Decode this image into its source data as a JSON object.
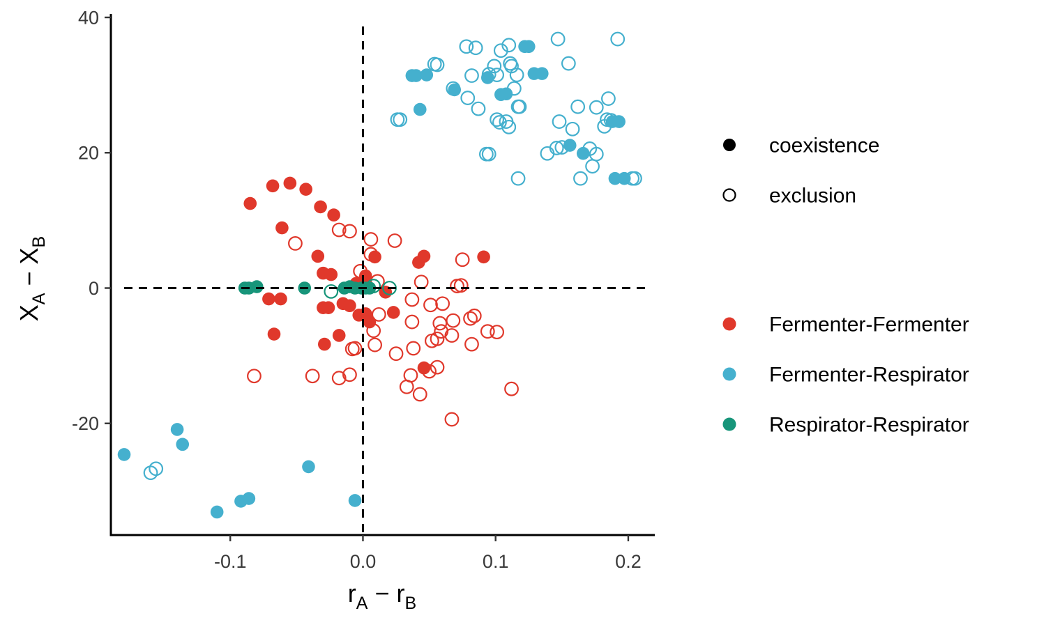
{
  "chart_data": {
    "type": "scatter",
    "xlabel": {
      "main": "r",
      "sub1": "A",
      "op": " − ",
      "main2": "r",
      "sub2": "B"
    },
    "ylabel": {
      "main": "X",
      "sub1": "A",
      "op": " − ",
      "main2": "X",
      "sub2": "B"
    },
    "xlim": [
      -0.19,
      0.22
    ],
    "ylim": [
      -36.5,
      40
    ],
    "x_ticks": [
      -0.1,
      0.0,
      0.1,
      0.2
    ],
    "x_tick_labels": [
      "-0.1",
      "0.0",
      "0.1",
      "0.2"
    ],
    "y_ticks": [
      -20,
      0,
      20,
      40
    ],
    "y_tick_labels": [
      "-20",
      "0",
      "20",
      "40"
    ],
    "reference_lines": {
      "x": 0,
      "y": 0,
      "style": "dashed"
    },
    "grid": false,
    "legend_placement": "right",
    "shape_legend": [
      {
        "label": "coexistence",
        "filled": true
      },
      {
        "label": "exclusion",
        "filled": false
      }
    ],
    "color_legend": [
      {
        "label": "Fermenter-Fermenter",
        "color": "#E0382B"
      },
      {
        "label": "Fermenter-Respirator",
        "color": "#45B0CE"
      },
      {
        "label": "Respirator-Respirator",
        "color": "#17957A"
      }
    ],
    "series": [
      {
        "name": "Fermenter-Fermenter",
        "color": "#E0382B",
        "coexistence": [
          [
            -0.085,
            12.5
          ],
          [
            -0.068,
            15.1
          ],
          [
            -0.055,
            15.5
          ],
          [
            -0.043,
            14.6
          ],
          [
            -0.032,
            12.0
          ],
          [
            -0.022,
            10.8
          ],
          [
            -0.061,
            8.9
          ],
          [
            -0.034,
            4.7
          ],
          [
            -0.03,
            2.2
          ],
          [
            -0.024,
            2.0
          ],
          [
            -0.071,
            -1.6
          ],
          [
            -0.062,
            -1.6
          ],
          [
            -0.03,
            -2.9
          ],
          [
            -0.026,
            -2.9
          ],
          [
            -0.015,
            -2.3
          ],
          [
            -0.01,
            -2.6
          ],
          [
            -0.003,
            -4.0
          ],
          [
            0.002,
            -3.8
          ],
          [
            0.005,
            -5.0
          ],
          [
            -0.005,
            0.7
          ],
          [
            0.002,
            1.8
          ],
          [
            0.009,
            4.6
          ],
          [
            0.017,
            -0.6
          ],
          [
            0.023,
            -3.6
          ],
          [
            0.042,
            3.8
          ],
          [
            0.046,
            4.7
          ],
          [
            0.091,
            4.6
          ],
          [
            -0.067,
            -6.8
          ],
          [
            -0.029,
            -8.3
          ],
          [
            -0.018,
            -7.0
          ],
          [
            0.046,
            -11.8
          ]
        ],
        "exclusion": [
          [
            -0.051,
            6.6
          ],
          [
            -0.018,
            8.6
          ],
          [
            -0.01,
            8.4
          ],
          [
            0.006,
            7.2
          ],
          [
            0.024,
            7.0
          ],
          [
            0.006,
            5.0
          ],
          [
            -0.002,
            2.5
          ],
          [
            -0.004,
            0.6
          ],
          [
            0.011,
            1.0
          ],
          [
            0.044,
            0.9
          ],
          [
            0.071,
            0.3
          ],
          [
            0.075,
            4.2
          ],
          [
            0.074,
            0.4
          ],
          [
            0.037,
            -1.7
          ],
          [
            0.051,
            -2.5
          ],
          [
            0.06,
            -2.3
          ],
          [
            0.012,
            -3.9
          ],
          [
            0.008,
            -6.3
          ],
          [
            0.037,
            -5.0
          ],
          [
            0.058,
            -5.2
          ],
          [
            0.068,
            -4.8
          ],
          [
            0.081,
            -4.5
          ],
          [
            0.084,
            -4.1
          ],
          [
            0.094,
            -6.4
          ],
          [
            0.101,
            -6.5
          ],
          [
            0.059,
            -6.4
          ],
          [
            0.056,
            -7.5
          ],
          [
            0.052,
            -7.8
          ],
          [
            0.067,
            -7.0
          ],
          [
            0.082,
            -8.3
          ],
          [
            0.038,
            -8.9
          ],
          [
            0.025,
            -9.7
          ],
          [
            -0.006,
            -8.9
          ],
          [
            -0.008,
            -9.0
          ],
          [
            0.009,
            -8.4
          ],
          [
            0.056,
            -11.7
          ],
          [
            0.05,
            -12.3
          ],
          [
            0.036,
            -12.9
          ],
          [
            -0.018,
            -13.3
          ],
          [
            -0.01,
            -12.8
          ],
          [
            -0.038,
            -13.0
          ],
          [
            -0.082,
            -13.0
          ],
          [
            0.033,
            -14.6
          ],
          [
            0.043,
            -15.7
          ],
          [
            0.112,
            -14.9
          ],
          [
            0.067,
            -19.4
          ]
        ]
      },
      {
        "name": "Fermenter-Respirator",
        "color": "#45B0CE",
        "coexistence": [
          [
            0.037,
            31.4
          ],
          [
            0.04,
            31.4
          ],
          [
            0.048,
            31.5
          ],
          [
            0.122,
            35.7
          ],
          [
            0.125,
            35.7
          ],
          [
            0.129,
            31.7
          ],
          [
            0.135,
            31.7
          ],
          [
            0.069,
            29.3
          ],
          [
            0.094,
            31.1
          ],
          [
            0.104,
            28.6
          ],
          [
            0.108,
            28.7
          ],
          [
            0.043,
            26.4
          ],
          [
            0.156,
            21.1
          ],
          [
            0.166,
            19.9
          ],
          [
            0.188,
            24.6
          ],
          [
            0.193,
            24.6
          ],
          [
            0.19,
            16.2
          ],
          [
            0.197,
            16.2
          ],
          [
            -0.18,
            -24.6
          ],
          [
            -0.14,
            -20.9
          ],
          [
            -0.136,
            -23.1
          ],
          [
            -0.11,
            -33.1
          ],
          [
            -0.092,
            -31.5
          ],
          [
            -0.086,
            -31.1
          ],
          [
            -0.041,
            -26.4
          ],
          [
            -0.006,
            -31.4
          ]
        ],
        "exclusion": [
          [
            0.078,
            35.7
          ],
          [
            0.085,
            35.5
          ],
          [
            0.11,
            35.9
          ],
          [
            0.104,
            35.1
          ],
          [
            0.147,
            36.8
          ],
          [
            0.192,
            36.8
          ],
          [
            0.054,
            33.1
          ],
          [
            0.056,
            33.0
          ],
          [
            0.099,
            32.8
          ],
          [
            0.112,
            32.8
          ],
          [
            0.111,
            33.2
          ],
          [
            0.155,
            33.2
          ],
          [
            0.082,
            31.4
          ],
          [
            0.095,
            31.6
          ],
          [
            0.101,
            31.5
          ],
          [
            0.116,
            31.5
          ],
          [
            0.114,
            29.5
          ],
          [
            0.068,
            29.5
          ],
          [
            0.079,
            28.1
          ],
          [
            0.185,
            28.0
          ],
          [
            0.087,
            26.5
          ],
          [
            0.118,
            26.8
          ],
          [
            0.117,
            26.8
          ],
          [
            0.162,
            26.8
          ],
          [
            0.176,
            26.7
          ],
          [
            0.026,
            24.9
          ],
          [
            0.028,
            24.9
          ],
          [
            0.101,
            24.9
          ],
          [
            0.103,
            24.5
          ],
          [
            0.108,
            24.6
          ],
          [
            0.11,
            23.8
          ],
          [
            0.148,
            24.6
          ],
          [
            0.158,
            23.5
          ],
          [
            0.182,
            23.9
          ],
          [
            0.184,
            24.9
          ],
          [
            0.187,
            24.8
          ],
          [
            0.093,
            19.8
          ],
          [
            0.095,
            19.8
          ],
          [
            0.139,
            19.9
          ],
          [
            0.146,
            20.7
          ],
          [
            0.15,
            20.8
          ],
          [
            0.171,
            20.6
          ],
          [
            0.176,
            19.8
          ],
          [
            0.173,
            18.0
          ],
          [
            0.117,
            16.2
          ],
          [
            0.164,
            16.2
          ],
          [
            0.203,
            16.2
          ],
          [
            0.205,
            16.2
          ],
          [
            -0.16,
            -27.3
          ],
          [
            -0.156,
            -26.7
          ]
        ]
      },
      {
        "name": "Respirator-Respirator",
        "color": "#17957A",
        "coexistence": [
          [
            -0.089,
            0.0
          ],
          [
            -0.086,
            0.0
          ],
          [
            -0.08,
            0.2
          ],
          [
            -0.044,
            0.0
          ],
          [
            -0.014,
            0.0
          ],
          [
            -0.01,
            0.2
          ],
          [
            -0.006,
            0.0
          ],
          [
            -0.001,
            0.0
          ],
          [
            0.002,
            0.0
          ],
          [
            0.005,
            0.0
          ]
        ],
        "exclusion": [
          [
            -0.024,
            -0.5
          ],
          [
            0.008,
            0.3
          ],
          [
            0.02,
            0.0
          ]
        ]
      }
    ]
  }
}
